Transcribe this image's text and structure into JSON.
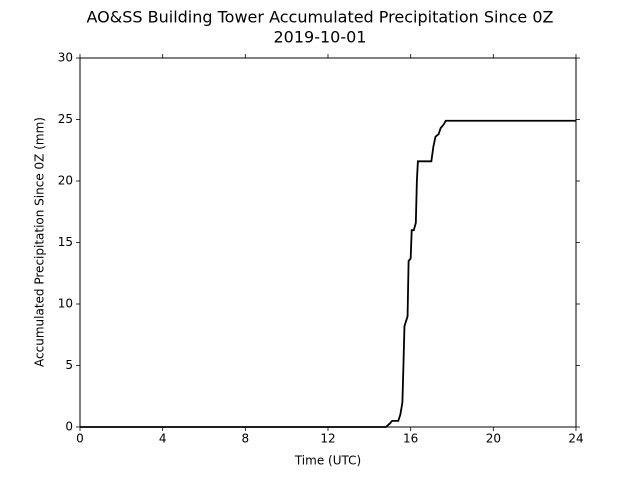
{
  "chart_data": {
    "type": "line",
    "title": "AO&SS Building Tower Accumulated Precipitation Since 0Z",
    "subtitle": "2019-10-01",
    "x_label": "Time (UTC)",
    "y_label": "Accumulated Precipitation Since 0Z (mm)",
    "x": [
      0,
      14.8,
      15.0,
      15.1,
      15.4,
      15.5,
      15.6,
      15.65,
      15.7,
      15.85,
      15.9,
      16.0,
      16.05,
      16.15,
      16.25,
      16.3,
      16.35,
      17.0,
      17.1,
      17.2,
      17.35,
      17.45,
      17.6,
      17.7,
      24
    ],
    "values": [
      0,
      0,
      0.3,
      0.5,
      0.5,
      1.0,
      2,
      5,
      8.2,
      9.0,
      13.5,
      13.7,
      16,
      16,
      16.6,
      20,
      21.6,
      21.6,
      22.8,
      23.6,
      23.8,
      24.3,
      24.6,
      24.9,
      24.9
    ],
    "color": "#000000",
    "xlim": [
      0,
      24
    ],
    "xticks": [
      0,
      4,
      8,
      12,
      16,
      20,
      24
    ],
    "ylim": [
      0,
      30
    ],
    "yticks": [
      0,
      5,
      10,
      15,
      20,
      25,
      30
    ]
  }
}
